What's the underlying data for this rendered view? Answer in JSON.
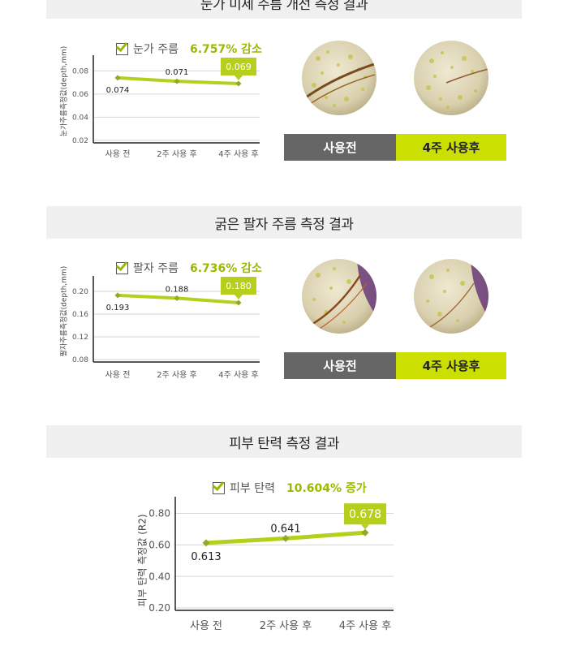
{
  "sections": [
    {
      "title": "눈가 미세 주름 개선 측정 결과",
      "legend_label": "눈가 주름",
      "legend_result": "6.757% 감소",
      "y_axis_label": "눈가주름측정값(depth,mm)",
      "tags": {
        "before": "사용전",
        "after": "4주 사용후"
      }
    },
    {
      "title": "굵은 팔자 주름 측정 결과",
      "legend_label": "팔자 주름",
      "legend_result": "6.736% 감소",
      "y_axis_label": "팔자주름측정값(depth,mm)",
      "tags": {
        "before": "사용전",
        "after": "4주 사용후"
      }
    },
    {
      "title": "피부 탄력 측정 결과",
      "legend_label": "피부 탄력",
      "legend_result": "10.604% 증가",
      "y_axis_label": "피부 탄력 측정값 (R2)"
    }
  ],
  "colors": {
    "accent": "#b5cf1c",
    "marker": "#8eaa2a",
    "band": "#f0f0f0",
    "before_tag": "#666666",
    "after_tag": "#cbe000"
  },
  "chart_data": [
    {
      "type": "line",
      "categories": [
        "사용 전",
        "2주 사용 후",
        "4주 사용 후"
      ],
      "values": [
        0.074,
        0.071,
        0.069
      ],
      "data_labels": [
        "0.074",
        "0.071",
        "0.069"
      ],
      "yticks": [
        0.02,
        0.04,
        0.06,
        0.08
      ],
      "ytick_labels": [
        "0.02",
        "0.04",
        "0.06",
        "0.08"
      ],
      "ylim": [
        0.02,
        0.09
      ],
      "ylabel": "눈가주름측정값(depth,mm)",
      "highlight_index": 2
    },
    {
      "type": "line",
      "categories": [
        "사용 전",
        "2주 사용 후",
        "4주 사용 후"
      ],
      "values": [
        0.193,
        0.188,
        0.18
      ],
      "data_labels": [
        "0.193",
        "0.188",
        "0.180"
      ],
      "yticks": [
        0.08,
        0.12,
        0.16,
        0.2
      ],
      "ytick_labels": [
        "0.08",
        "0.12",
        "0.16",
        "0.20"
      ],
      "ylim": [
        0.08,
        0.22
      ],
      "ylabel": "팔자주름측정값(depth,mm)",
      "highlight_index": 2
    },
    {
      "type": "line",
      "categories": [
        "사용 전",
        "2주 사용 후",
        "4주 사용 후"
      ],
      "values": [
        0.613,
        0.641,
        0.678
      ],
      "data_labels": [
        "0.613",
        "0.641",
        "0.678"
      ],
      "yticks": [
        0.2,
        0.4,
        0.6,
        0.8
      ],
      "ytick_labels": [
        "0.20",
        "0.40",
        "0.60",
        "0.80"
      ],
      "ylim": [
        0.2,
        0.88
      ],
      "ylabel": "피부 탄력 측정값 (R2)",
      "highlight_index": 2
    }
  ]
}
